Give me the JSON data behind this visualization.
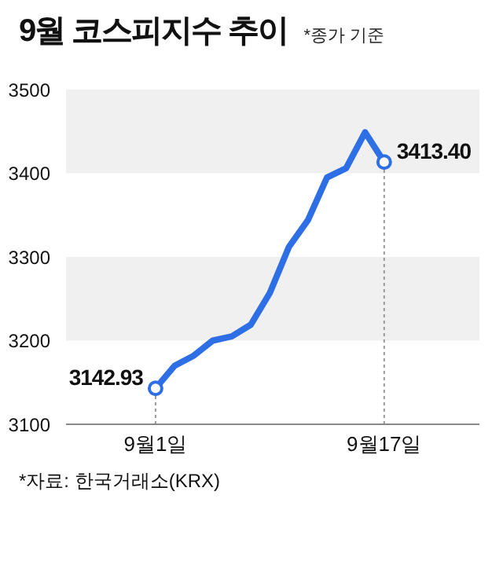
{
  "chart_data": {
    "type": "line",
    "title": "9월 코스피지수 추이",
    "subtitle": "*종가 기준",
    "categories": [
      "9월1일",
      null,
      null,
      null,
      null,
      null,
      null,
      null,
      null,
      null,
      null,
      null,
      "9월17일"
    ],
    "series": [
      {
        "color": "#2f6fe6",
        "values": [
          3142.93,
          3170,
          3182,
          3200,
          3205,
          3219,
          3257,
          3312,
          3344,
          3395,
          3406,
          3449,
          3413.4
        ],
        "value_labels": [
          "3142.93",
          null,
          null,
          null,
          null,
          null,
          null,
          null,
          null,
          null,
          null,
          null,
          "3413.40"
        ]
      }
    ],
    "ylim": [
      3100,
      3500
    ],
    "yticks": [
      3100,
      3200,
      3300,
      3400,
      3500
    ],
    "bands": [
      {
        "axis": "y",
        "from": 3200,
        "to": 3300,
        "color": "#f0f0f0"
      },
      {
        "axis": "y",
        "from": 3400,
        "to": 3500,
        "color": "#f0f0f0"
      }
    ],
    "ref_lines": [
      {
        "axis": "x",
        "value": "9월1일",
        "line_style": "dotted",
        "color": "#999999"
      },
      {
        "axis": "x",
        "value": "9월17일",
        "line_style": "dotted",
        "color": "#999999"
      }
    ],
    "grid": false,
    "legend": false,
    "annotations": [
      "*자료: 한국거래소(KRX)"
    ]
  }
}
